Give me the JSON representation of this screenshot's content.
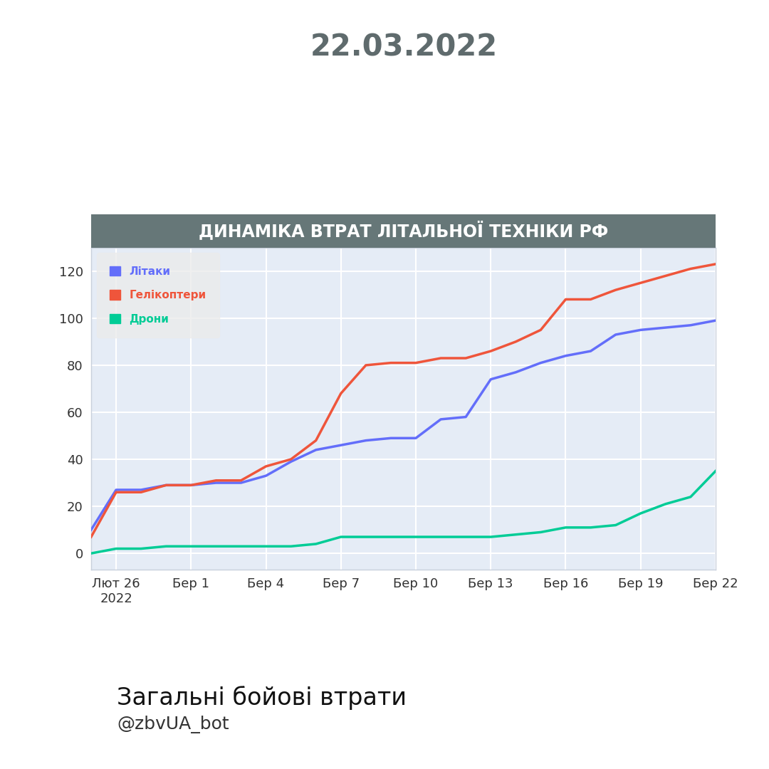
{
  "header": {
    "date": "22.03.2022"
  },
  "chart_data": {
    "type": "line",
    "title": "ДИНАМІКА ВТРАТ ЛІТАЛЬНОЇ ТЕХНІКИ РФ",
    "categories": [
      null,
      "Лют 26\n2022",
      null,
      null,
      "Бер 1",
      null,
      null,
      "Бер 4",
      null,
      null,
      "Бер 7",
      null,
      null,
      "Бер 10",
      null,
      null,
      "Бер 13",
      null,
      null,
      "Бер 16",
      null,
      null,
      "Бер 19",
      null,
      null,
      "Бер 22"
    ],
    "series": [
      {
        "name": "Літаки",
        "color": "#636efa",
        "values": [
          10,
          27,
          27,
          29,
          29,
          30,
          30,
          33,
          39,
          44,
          46,
          48,
          49,
          49,
          57,
          58,
          74,
          77,
          81,
          84,
          86,
          93,
          95,
          96,
          97,
          99
        ]
      },
      {
        "name": "Гелікоптери",
        "color": "#ef553b",
        "values": [
          7,
          26,
          26,
          29,
          29,
          31,
          31,
          37,
          40,
          48,
          68,
          80,
          81,
          81,
          83,
          83,
          86,
          90,
          95,
          108,
          108,
          112,
          115,
          118,
          121,
          123
        ]
      },
      {
        "name": "Дрони",
        "color": "#00cc96",
        "values": [
          0,
          2,
          2,
          3,
          3,
          3,
          3,
          3,
          3,
          4,
          7,
          7,
          7,
          7,
          7,
          7,
          7,
          8,
          9,
          11,
          11,
          12,
          17,
          21,
          24,
          35
        ]
      }
    ],
    "ylim": [
      -7,
      130
    ],
    "yticks": [
      0,
      20,
      40,
      60,
      80,
      100,
      120
    ],
    "grid": true,
    "legend": "upper left"
  },
  "footer": {
    "title": "Загальні бойові втрати",
    "handle": "@zbvUA_bot"
  }
}
